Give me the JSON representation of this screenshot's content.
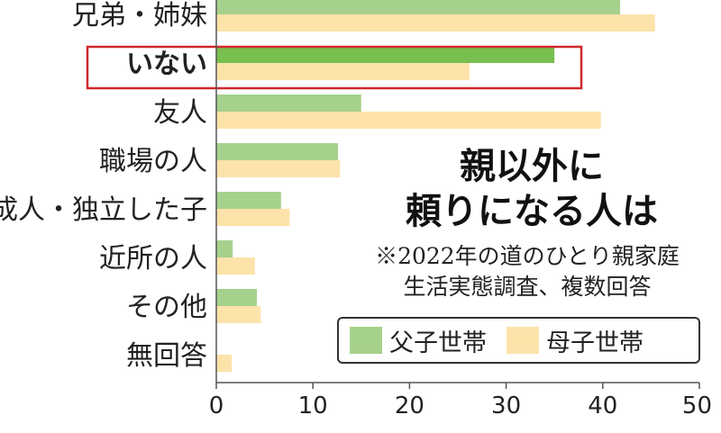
{
  "chart_data": {
    "type": "bar",
    "orientation": "horizontal",
    "categories": [
      "兄弟・姉妹",
      "いない",
      "友人",
      "職場の人",
      "成人・独立した子",
      "近所の人",
      "その他",
      "無回答"
    ],
    "highlighted_category": "いない",
    "series": [
      {
        "name": "父子世帯",
        "color": "#a6d18c",
        "values": [
          41.8,
          35.0,
          15.0,
          12.6,
          6.7,
          1.7,
          4.2,
          0
        ]
      },
      {
        "name": "母子世帯",
        "color": "#fde3aa",
        "values": [
          45.4,
          26.2,
          39.8,
          12.8,
          7.6,
          4.0,
          4.6,
          1.6
        ]
      }
    ],
    "highlight_color": "#d0282d",
    "highlight_series_color": "#78bf4f",
    "xlim": [
      0,
      50
    ],
    "xticks": [
      0,
      10,
      20,
      30,
      40,
      50
    ],
    "title": [
      "親以外に",
      "頼りになる人は"
    ],
    "note": [
      "※2022年の道のひとり親家庭",
      "生活実態調査、複数回答"
    ],
    "legend_position": "bottom-right",
    "grid": false
  }
}
